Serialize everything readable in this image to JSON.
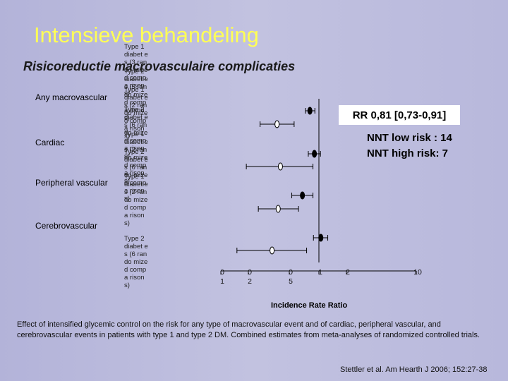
{
  "slide": {
    "title": "Intensieve behandeling",
    "subtitle": "Risicoreductie macrovasculaire complicaties",
    "background_color": "#bcbcdc",
    "title_color": "#ffff55"
  },
  "annotations": {
    "rr": "RR 0,81 [0,73-0,91]",
    "nnt_low": "NNT low risk : 14",
    "nnt_high": "NNT high risk: 7"
  },
  "overlapping_text": [
    "Type 1 diabet es (3 rando mized compa risons)",
    "Type 2 diabet es (5 rando mized compa risons)",
    "Type 1 diabet es (2 rando mized compa risons)",
    "Type 2 diabet es (6 rando mized compa risons)",
    "Type 1 diabet es (2 rando mized compa risons)",
    "Type 2 diabet es (6 rando mized compa risons)",
    "Type 1 diabet es (2 rando mized compa risons)",
    "Type 2 diabet es (6 rando mized compa risons)"
  ],
  "caption": "Effect of intensified glycemic control on the risk for any type of macrovascular event and of cardiac, peripheral vascular, and cerebrovascular events in patients with type 1 and type 2 DM. Combined estimates from meta-analyses of randomized controlled trials.",
  "citation": "Stettler et al. Am Hearth J 2006; 152:27-38",
  "chart_data": {
    "type": "forest",
    "xlabel": "Incidence Rate Ratio",
    "x_scale": "log",
    "xlim": [
      0.1,
      10
    ],
    "ticks": [
      {
        "value": 0.1,
        "label_top": "0",
        "label_bottom": "1"
      },
      {
        "value": 0.2,
        "label_top": "0",
        "label_bottom": "2"
      },
      {
        "value": 0.5,
        "label_top": "0",
        "label_bottom": "5"
      },
      {
        "value": 1,
        "label_top": "1",
        "label_bottom": ""
      },
      {
        "value": 2,
        "label_top": "2",
        "label_bottom": ""
      },
      {
        "value": 10,
        "label_top": "10",
        "label_bottom": ""
      }
    ],
    "reference_value": 1,
    "groups": [
      {
        "label": "Any macrovascular",
        "rows": [
          {
            "series": "Type 2",
            "estimate": 0.81,
            "ci": [
              0.73,
              0.91
            ]
          },
          {
            "series": "Type 1",
            "estimate": 0.38,
            "ci": [
              0.26,
              0.56
            ]
          }
        ]
      },
      {
        "label": "Cardiac",
        "rows": [
          {
            "series": "Type 2",
            "estimate": 0.9,
            "ci": [
              0.78,
              1.04
            ]
          },
          {
            "series": "Type 1",
            "estimate": 0.41,
            "ci": [
              0.19,
              0.87
            ]
          }
        ]
      },
      {
        "label": "Peripheral vascular",
        "rows": [
          {
            "series": "Type 2",
            "estimate": 0.68,
            "ci": [
              0.53,
              0.87
            ]
          },
          {
            "series": "Type 1",
            "estimate": 0.39,
            "ci": [
              0.25,
              0.62
            ]
          }
        ]
      },
      {
        "label": "Cerebrovascular",
        "rows": [
          {
            "series": "Type 2",
            "estimate": 1.05,
            "ci": [
              0.88,
              1.25
            ]
          },
          {
            "series": "Type 1",
            "estimate": 0.34,
            "ci": [
              0.15,
              0.75
            ]
          }
        ]
      }
    ],
    "series_styles": {
      "Type 2": {
        "marker": "filled",
        "color": "#000000"
      },
      "Type 1": {
        "marker": "open",
        "color": "#ffffff"
      }
    }
  }
}
